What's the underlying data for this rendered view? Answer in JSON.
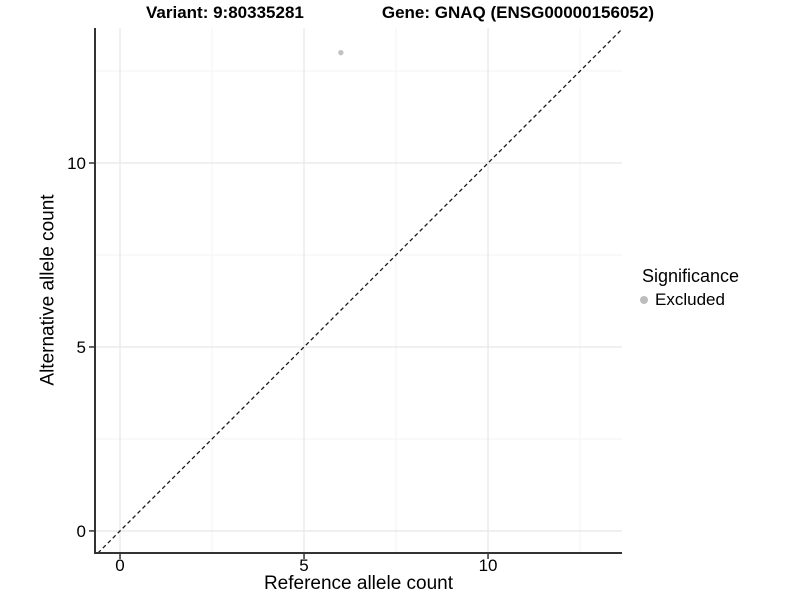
{
  "chart_data": {
    "type": "scatter",
    "title_left": "Variant: 9:80335281",
    "title_right": "Gene: GNAQ (ENSG00000156052)",
    "xlabel": "Reference allele count",
    "ylabel": "Alternative allele count",
    "xlim": [
      -0.68,
      13.64
    ],
    "ylim": [
      -0.6,
      13.67
    ],
    "x_major_ticks": [
      0,
      5,
      10
    ],
    "y_major_ticks": [
      0,
      5,
      10
    ],
    "x_minor_ticks": [
      2.5,
      7.5,
      12.5
    ],
    "y_minor_ticks": [
      2.5,
      7.5,
      12.5
    ],
    "grid": "major and minor, light gray on white",
    "identity_line": {
      "style": "dashed",
      "slope": 1,
      "intercept": 0
    },
    "series": [
      {
        "name": "Excluded",
        "marker": "circle",
        "color": "#c2c2c2",
        "points": [
          {
            "x": 6,
            "y": 13
          }
        ]
      }
    ],
    "legend": {
      "title": "Significance",
      "position": "right",
      "entries": [
        {
          "label": "Excluded",
          "color": "#bdbdbd"
        }
      ]
    },
    "colors": {
      "background": "#ffffff",
      "axis_line": "#333333",
      "grid_major": "#e8e8e8",
      "grid_minor": "#f3f3f3",
      "dashed_line": "#1a1a1a",
      "text": "#000000",
      "point": "#c2c2c2"
    }
  }
}
